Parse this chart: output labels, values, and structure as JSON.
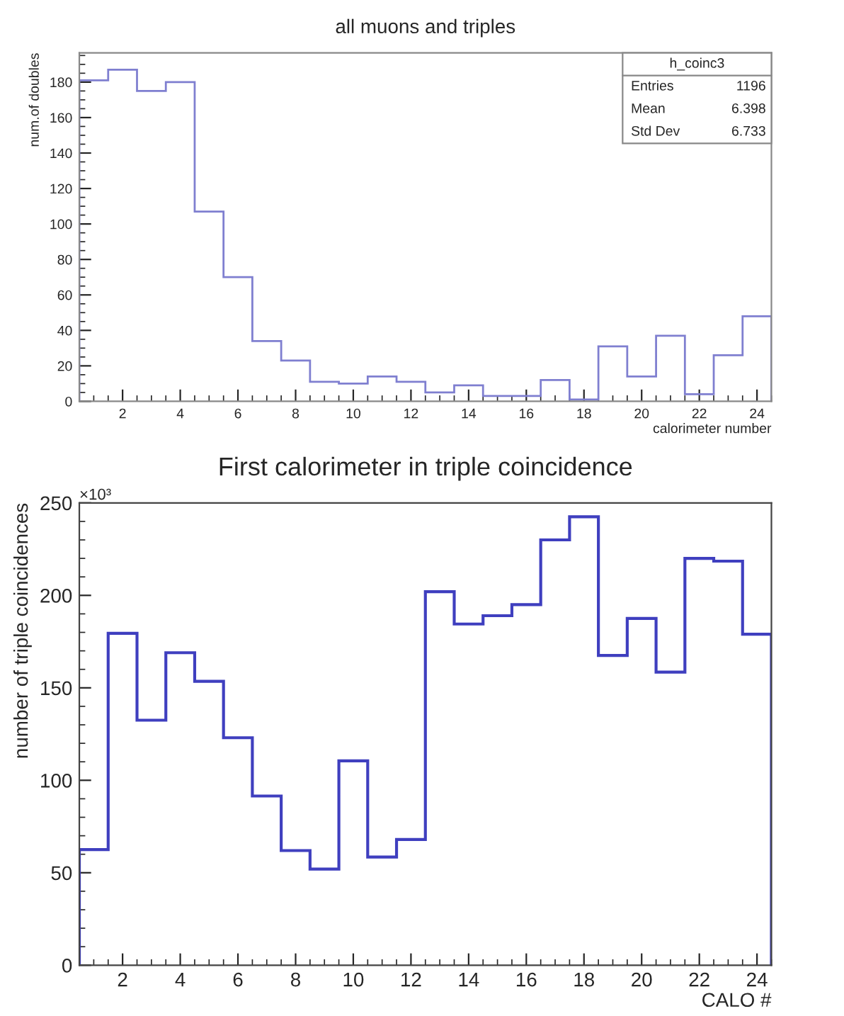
{
  "chart_data": [
    {
      "type": "histogram",
      "title": "all muons and triples",
      "xlabel": "calorimeter number",
      "ylabel": "num.of doubles",
      "bins": [
        0.5,
        1.5,
        2.5,
        3.5,
        4.5,
        5.5,
        6.5,
        7.5,
        8.5,
        9.5,
        10.5,
        11.5,
        12.5,
        13.5,
        14.5,
        15.5,
        16.5,
        17.5,
        18.5,
        19.5,
        20.5,
        21.5,
        22.5,
        23.5,
        24.5
      ],
      "values": [
        181,
        187,
        175,
        180,
        107,
        70,
        34,
        23,
        11,
        10,
        14,
        11,
        5,
        9,
        3,
        3,
        12,
        1,
        31,
        14,
        37,
        4,
        26,
        48
      ],
      "color": "#7f7fd0",
      "xlim": [
        0.5,
        24.5
      ],
      "xticks": [
        2,
        4,
        6,
        8,
        10,
        12,
        14,
        16,
        18,
        20,
        22,
        24
      ],
      "ylim": [
        0,
        196.5
      ],
      "yticks": [
        0,
        20,
        40,
        60,
        80,
        100,
        120,
        140,
        160,
        180
      ],
      "grid": false,
      "legend": false,
      "annotations": [
        "h_coinc3",
        "Entries",
        "1196",
        "Mean",
        "6.398",
        "Std Dev",
        "6.733"
      ]
    },
    {
      "type": "histogram",
      "title": "First calorimeter in triple coincidence",
      "xlabel": "CALO #",
      "ylabel": "number of triple coincidences",
      "bins": [
        0.5,
        1.5,
        2.5,
        3.5,
        4.5,
        5.5,
        6.5,
        7.5,
        8.5,
        9.5,
        10.5,
        11.5,
        12.5,
        13.5,
        14.5,
        15.5,
        16.5,
        17.5,
        18.5,
        19.5,
        20.5,
        21.5,
        22.5,
        23.5,
        24.5
      ],
      "values": [
        62.5,
        179.5,
        132.5,
        169,
        153.5,
        123,
        91.5,
        62,
        52,
        110.5,
        58.5,
        68,
        202,
        184.5,
        189,
        195,
        230,
        242.5,
        167.5,
        187.5,
        158.5,
        220,
        218.5,
        179
      ],
      "color": "#3f3fbf",
      "xlim": [
        0.5,
        24.5
      ],
      "xticks": [
        2,
        4,
        6,
        8,
        10,
        12,
        14,
        16,
        18,
        20,
        22,
        24
      ],
      "ylim": [
        0,
        250
      ],
      "yticks": [
        0,
        50,
        100,
        150,
        200,
        250
      ],
      "grid": false,
      "legend": false,
      "annotations": [
        "×10³"
      ]
    }
  ]
}
